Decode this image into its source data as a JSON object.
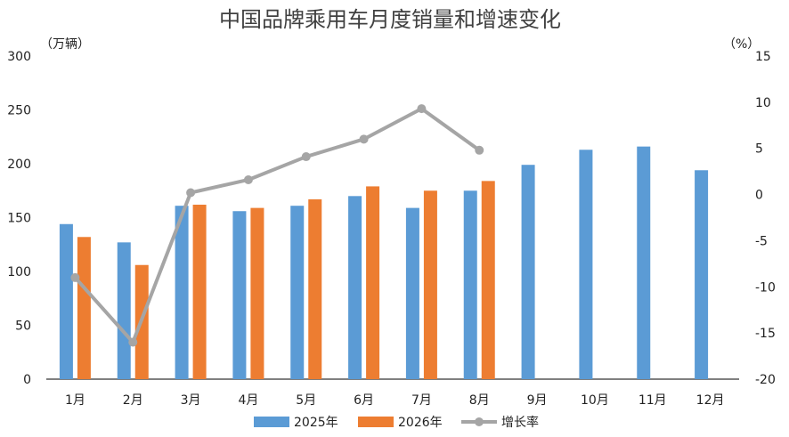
{
  "chart_data": {
    "type": "bar",
    "title": "中国品牌乘用车月度销量和增速变化",
    "y_unit_left": "（万辆）",
    "y_unit_right": "（%）",
    "categories": [
      "1月",
      "2月",
      "3月",
      "4月",
      "5月",
      "6月",
      "7月",
      "8月",
      "9月",
      "10月",
      "11月",
      "12月"
    ],
    "ylim_left": [
      0,
      300
    ],
    "yticks_left": [
      "0",
      "50",
      "100",
      "150",
      "200",
      "250",
      "300"
    ],
    "ylim_right": [
      -20,
      15
    ],
    "yticks_right": [
      "-20",
      "-15",
      "-10",
      "-5",
      "0",
      "5",
      "10",
      "15"
    ],
    "series": [
      {
        "name": "2025年",
        "kind": "bar",
        "axis": "left",
        "color": "#5B9BD5",
        "values": [
          144,
          127,
          161,
          156,
          161,
          170,
          159,
          175,
          199,
          213,
          216,
          194
        ]
      },
      {
        "name": "2026年",
        "kind": "bar",
        "axis": "left",
        "color": "#ED7D31",
        "values": [
          132,
          106,
          162,
          159,
          167,
          179,
          175,
          184,
          null,
          null,
          null,
          null
        ]
      },
      {
        "name": "增长率",
        "kind": "line",
        "axis": "right",
        "color": "#A5A5A5",
        "values": [
          -9.0,
          -16.0,
          0.2,
          1.6,
          4.1,
          6.0,
          9.3,
          4.8,
          null,
          null,
          null,
          null
        ]
      }
    ],
    "legend_position": "bottom",
    "grid": false
  }
}
